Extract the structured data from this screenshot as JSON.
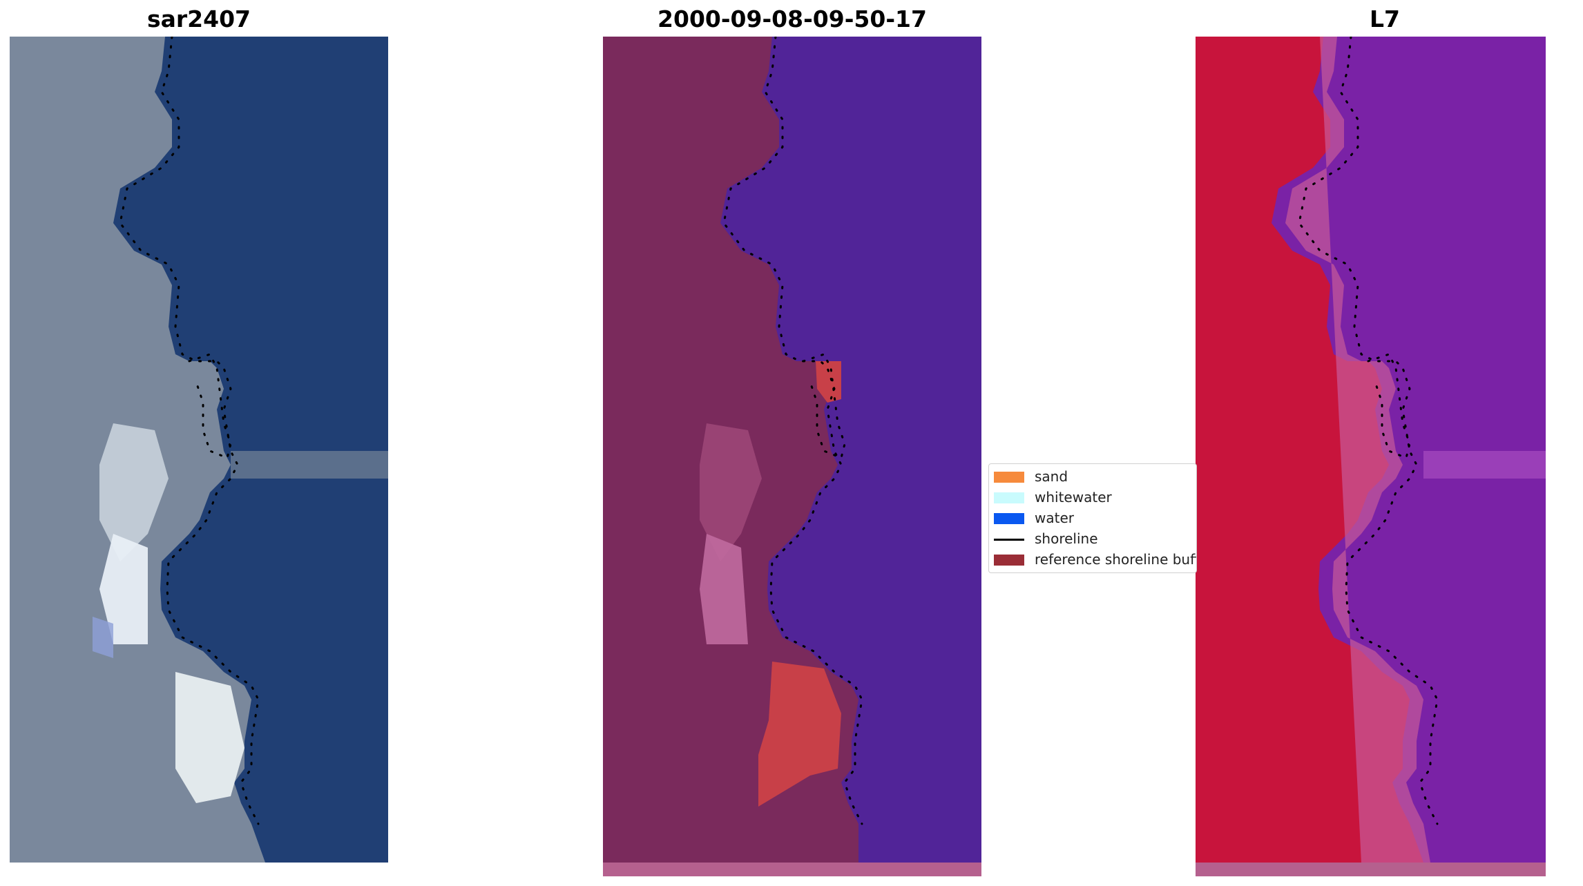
{
  "panels": [
    {
      "title": "sar2407"
    },
    {
      "title": "2000-09-08-09-50-17"
    },
    {
      "title": "L7"
    }
  ],
  "legend": {
    "items": [
      {
        "label": "sand",
        "color": "#f68a3c"
      },
      {
        "label": "whitewater",
        "color": "#c9fbfd"
      },
      {
        "label": "water",
        "color": "#0a58f0"
      },
      {
        "label": "shoreline",
        "color": "#000000"
      },
      {
        "label": "reference shoreline buffer",
        "color": "#9a2d36"
      }
    ]
  },
  "colors": {
    "rgb_land": "#7a889c",
    "rgb_water": "#203f74",
    "rgb_sand": "#e8eef0",
    "class_land": "#7a2a5c",
    "class_water": "#512498",
    "class_sand": "#c84048",
    "class_strip": "#b5608e",
    "ndwi_land": "#c8143c",
    "ndwi_water": "#7a22a6"
  }
}
